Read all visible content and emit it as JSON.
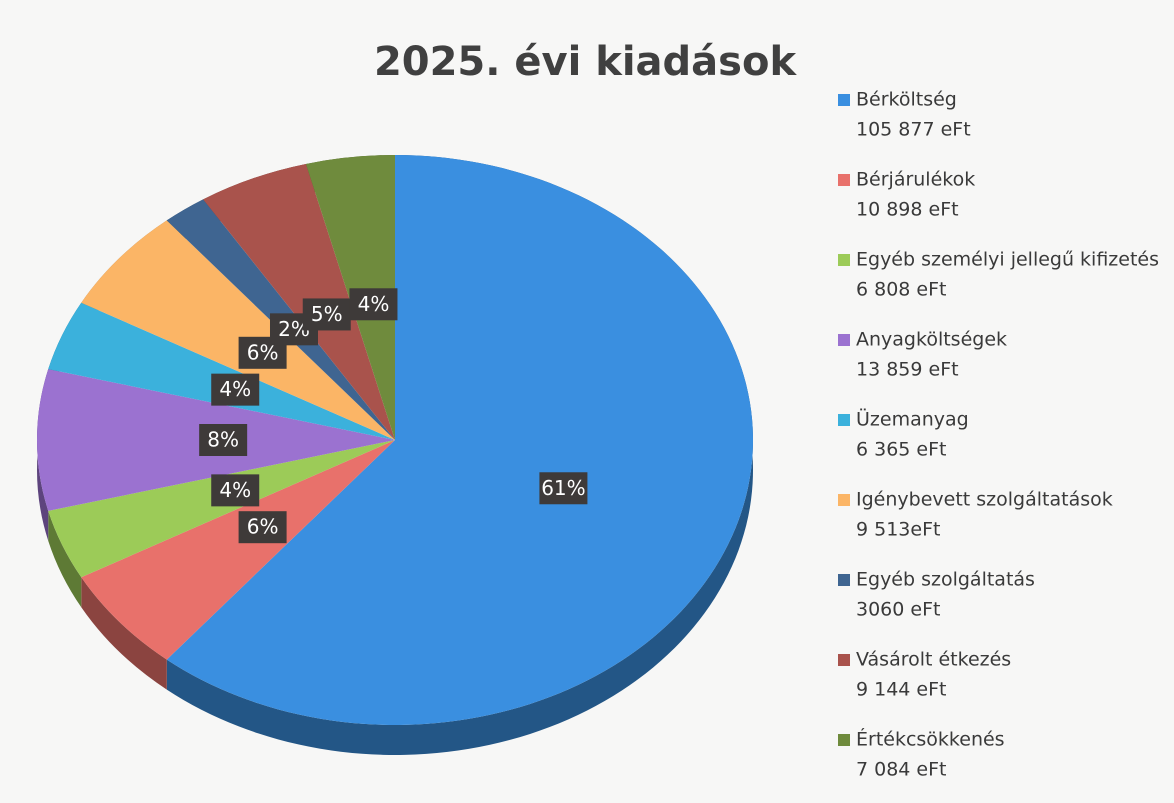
{
  "chart_data": {
    "type": "pie",
    "title": "2025. évi kiadások",
    "categories": [
      "Bérköltség",
      "Bérjárulékok",
      "Egyéb személyi jellegű kifizetés",
      "Anyagköltségek",
      "Üzemanyag",
      "Igénybevett szolgáltatások",
      "Egyéb szolgáltatás",
      "Vásárolt étkezés",
      "Értékcsökkenés"
    ],
    "amounts": [
      "105 877 eFt",
      "10 898 eFt",
      "6 808 eFt",
      "13 859 eFt",
      "6 365 eFt",
      "9 513eFt",
      "3060  eFt",
      "9 144 eFt",
      "7 084 eFt"
    ],
    "values": [
      61,
      6,
      4,
      8,
      4,
      6,
      2,
      5,
      4
    ],
    "value_labels": [
      "61%",
      "6%",
      "4%",
      "8%",
      "4%",
      "6%",
      "2%",
      "5%",
      "4%"
    ],
    "colors": [
      "#3a8fe0",
      "#e8716b",
      "#9ccb58",
      "#9b72d0",
      "#3bb1dc",
      "#fbb566",
      "#3f6591",
      "#a9534c",
      "#6f8b3d"
    ],
    "legend": "right"
  }
}
